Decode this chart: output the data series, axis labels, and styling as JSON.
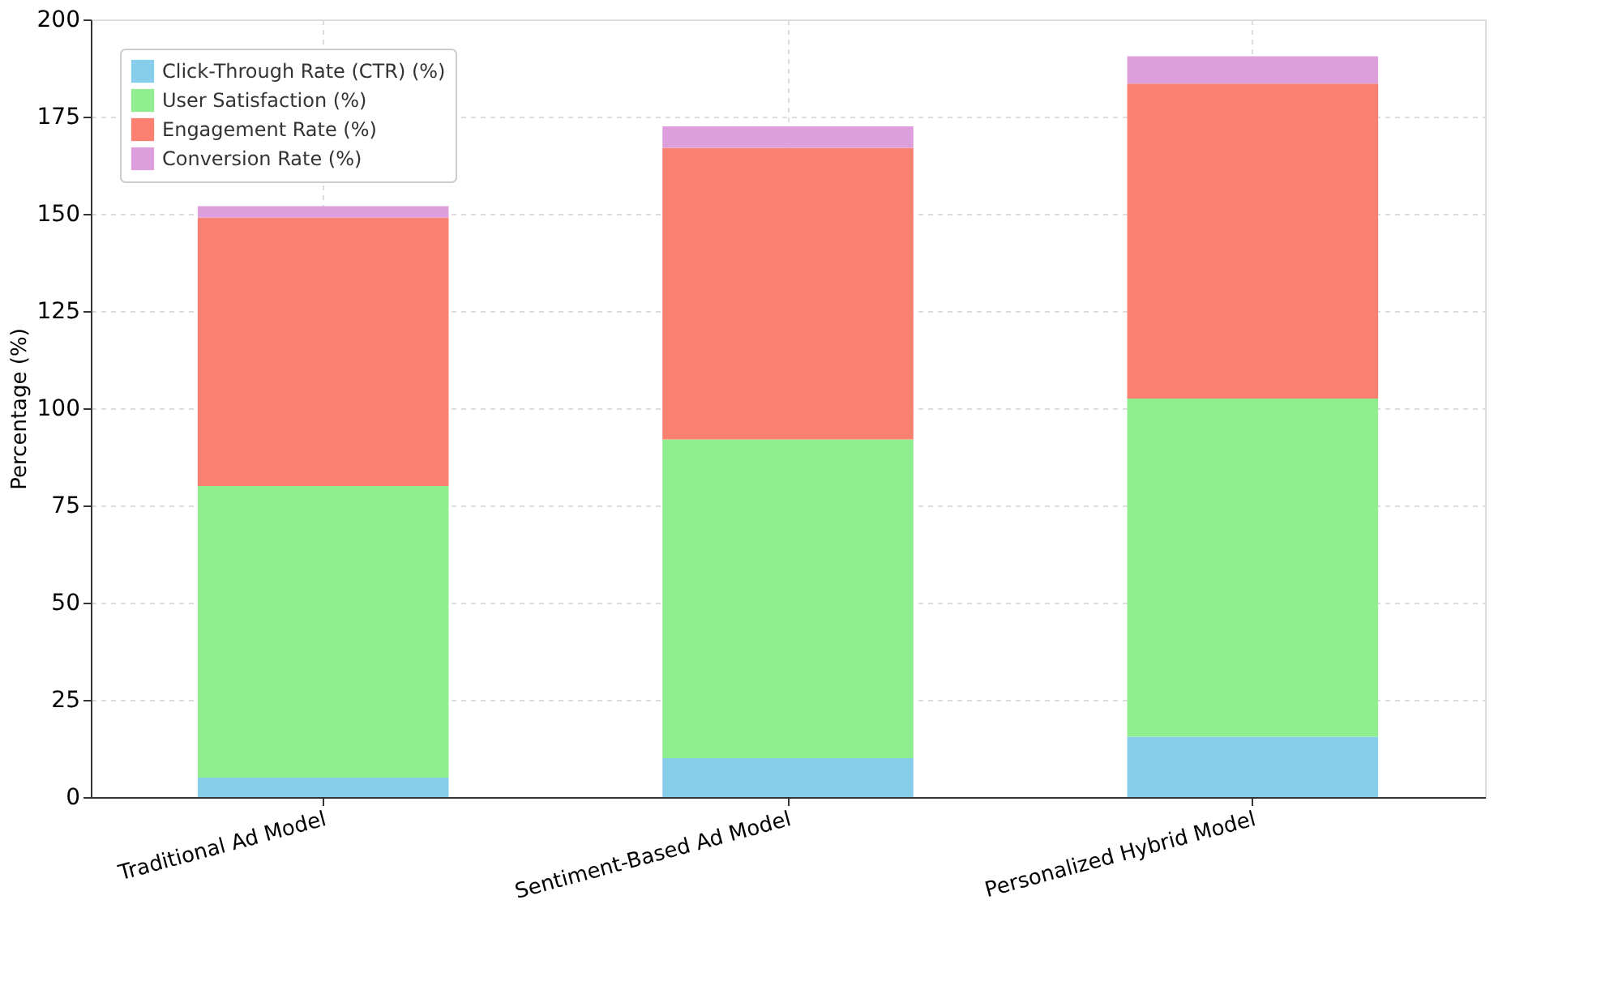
{
  "chart_data": {
    "type": "bar",
    "stacked": true,
    "ylabel": "Percentage (%)",
    "categories": [
      "Traditional Ad Model",
      "Sentiment-Based Ad Model",
      "Personalized Hybrid Model"
    ],
    "series": [
      {
        "name": "Click-Through Rate (CTR) (%)",
        "color": "#87ceeb",
        "values": [
          5,
          10,
          15.5
        ]
      },
      {
        "name": "User Satisfaction (%)",
        "color": "#90ee90",
        "values": [
          75,
          82,
          87
        ]
      },
      {
        "name": "Engagement Rate (%)",
        "color": "#fa8072",
        "values": [
          69,
          75,
          81
        ]
      },
      {
        "name": "Conversion Rate (%)",
        "color": "#dda0dd",
        "values": [
          3,
          5.5,
          7
        ]
      }
    ],
    "ylim": [
      0,
      200
    ],
    "yticks": [
      0,
      25,
      50,
      75,
      100,
      125,
      150,
      175,
      200
    ],
    "grid": true,
    "legend": "top left"
  }
}
